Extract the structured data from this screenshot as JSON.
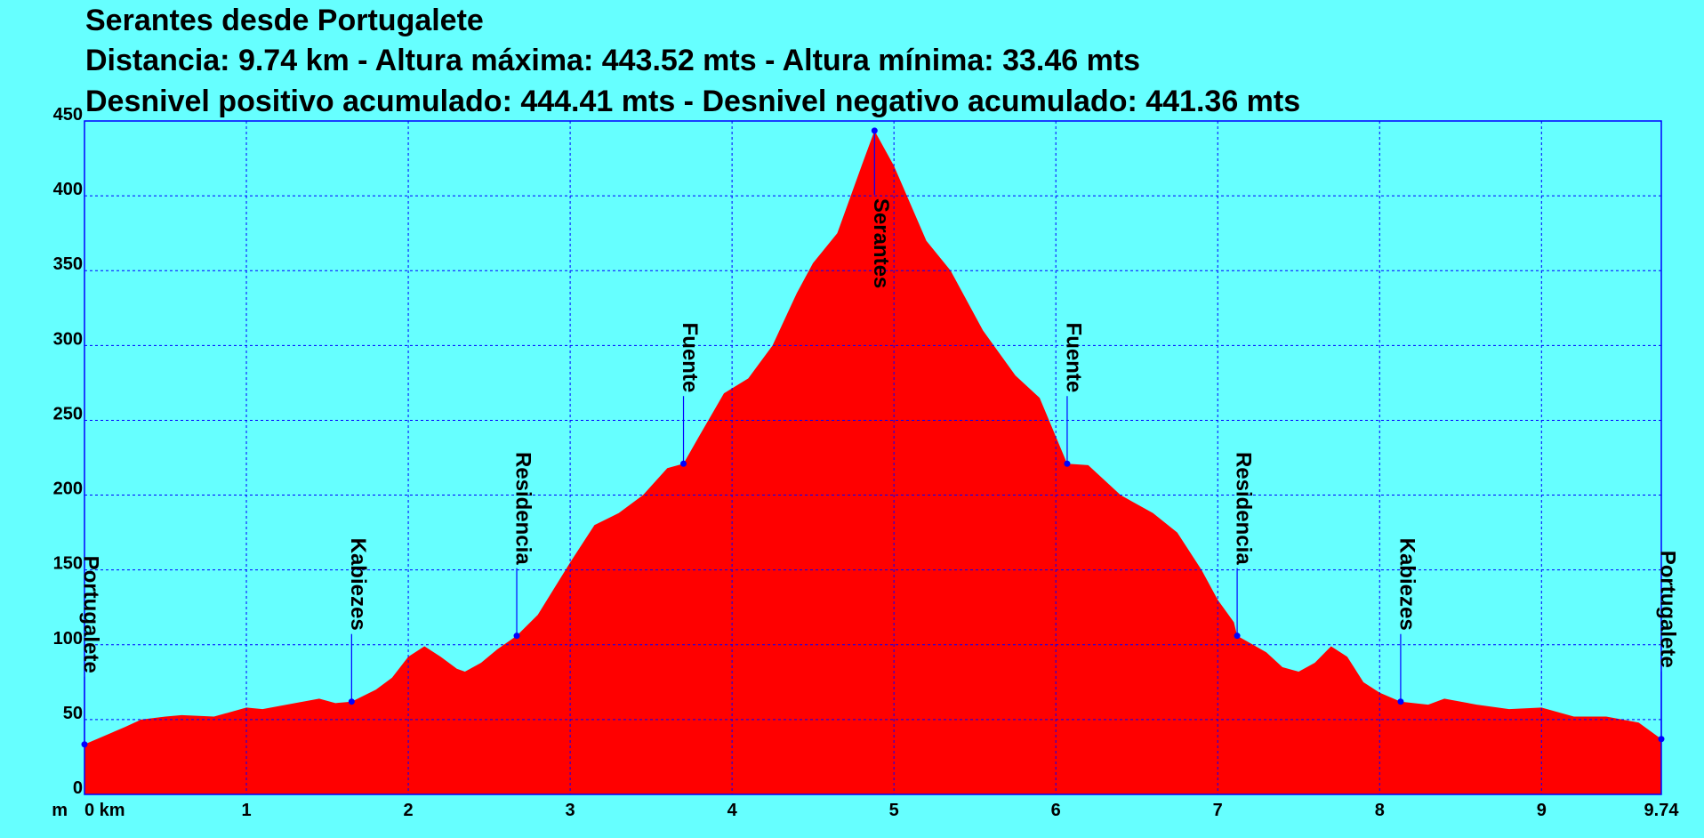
{
  "chart_data": {
    "type": "area",
    "title": "Serantes desde Portugalete",
    "subtitle": "Distancia: 9.74 km - Altura máxima: 443.52 mts - Altura mínima: 33.46 mts",
    "subtitle2": "Desnivel positivo acumulado: 444.41 mts - Desnivel negativo acumulado: 441.36 mts",
    "y_unit": "m",
    "x": [
      0,
      0.25,
      0.35,
      0.5,
      0.6,
      0.8,
      0.9,
      1.0,
      1.1,
      1.2,
      1.3,
      1.45,
      1.55,
      1.65,
      1.8,
      1.9,
      2.0,
      2.1,
      2.2,
      2.3,
      2.35,
      2.45,
      2.55,
      2.67,
      2.8,
      3.0,
      3.15,
      3.3,
      3.45,
      3.6,
      3.7,
      3.8,
      3.95,
      4.1,
      4.25,
      4.4,
      4.5,
      4.65,
      4.8,
      4.88,
      5.0,
      5.2,
      5.35,
      5.55,
      5.75,
      5.9,
      6.07,
      6.2,
      6.4,
      6.6,
      6.75,
      6.9,
      7.0,
      7.1,
      7.12,
      7.3,
      7.4,
      7.5,
      7.6,
      7.7,
      7.8,
      7.9,
      8.0,
      8.13,
      8.3,
      8.4,
      8.6,
      8.8,
      9.0,
      9.2,
      9.4,
      9.6,
      9.74
    ],
    "values": [
      33.46,
      45,
      50,
      52,
      53,
      52,
      55,
      58,
      57,
      59,
      61,
      64,
      61,
      62,
      70,
      78,
      92,
      99,
      92,
      84,
      82,
      88,
      97,
      106,
      120,
      155,
      180,
      188,
      200,
      218,
      221,
      240,
      268,
      278,
      300,
      335,
      355,
      375,
      420,
      443.52,
      420,
      370,
      350,
      310,
      280,
      265,
      221,
      220,
      200,
      188,
      175,
      150,
      130,
      115,
      106,
      95,
      85,
      82,
      88,
      99,
      92,
      75,
      68,
      62,
      60,
      64,
      60,
      57,
      58,
      52,
      52,
      48,
      37
    ],
    "color": "#ff0000",
    "markers": [
      {
        "label": "Portugalete",
        "x": 0,
        "y": 33.46
      },
      {
        "label": "Kabiezes",
        "x": 1.65,
        "y": 62
      },
      {
        "label": "Residencia",
        "x": 2.67,
        "y": 106
      },
      {
        "label": "Fuente",
        "x": 3.7,
        "y": 221
      },
      {
        "label": "Serantes",
        "x": 4.88,
        "y": 443.52
      },
      {
        "label": "Fuente",
        "x": 6.07,
        "y": 221
      },
      {
        "label": "Residencia",
        "x": 7.12,
        "y": 106
      },
      {
        "label": "Kabiezes",
        "x": 8.13,
        "y": 62
      },
      {
        "label": "Portugalete",
        "x": 9.74,
        "y": 37
      }
    ],
    "xlim": [
      0,
      9.74
    ],
    "ylim": [
      0,
      450
    ],
    "xticks": [
      {
        "value": 0,
        "label": "0 km"
      },
      1,
      2,
      3,
      4,
      5,
      6,
      7,
      8,
      9,
      9.74
    ],
    "yticks": [
      0,
      50,
      100,
      150,
      200,
      250,
      300,
      350,
      400,
      450
    ],
    "grid": true
  }
}
